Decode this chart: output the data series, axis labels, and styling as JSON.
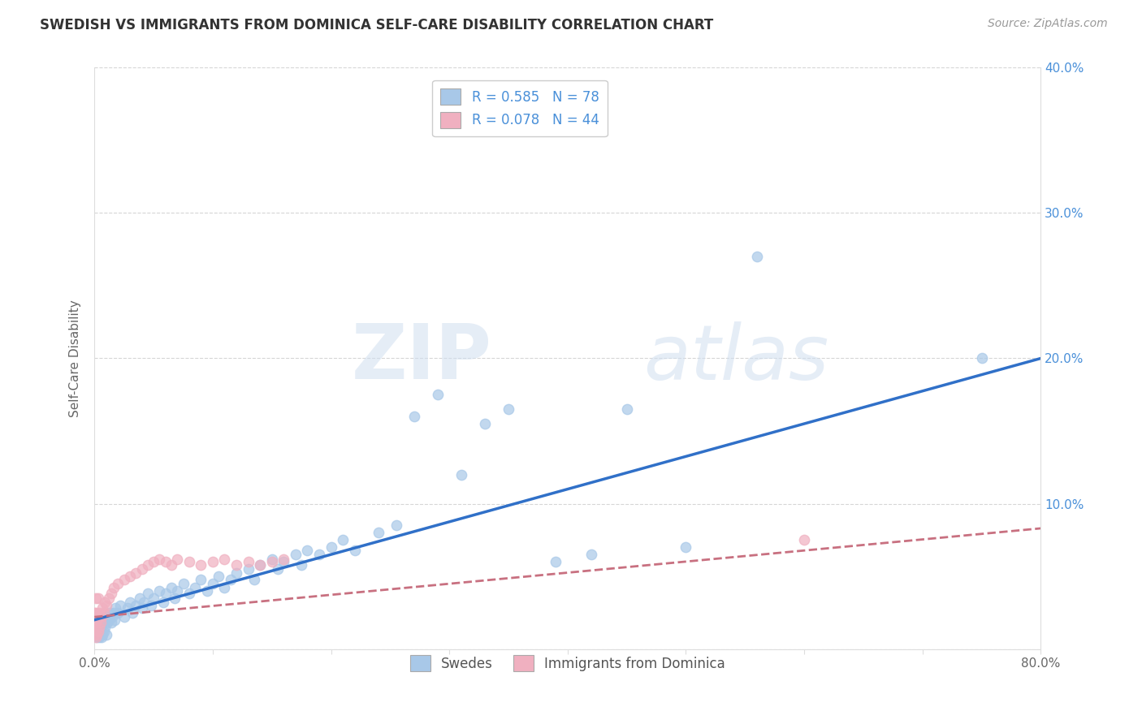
{
  "title": "SWEDISH VS IMMIGRANTS FROM DOMINICA SELF-CARE DISABILITY CORRELATION CHART",
  "source": "Source: ZipAtlas.com",
  "ylabel": "Self-Care Disability",
  "xlim": [
    0.0,
    0.8
  ],
  "ylim": [
    0.0,
    0.4
  ],
  "xticks": [
    0.0,
    0.1,
    0.2,
    0.3,
    0.4,
    0.5,
    0.6,
    0.7,
    0.8
  ],
  "yticks": [
    0.0,
    0.1,
    0.2,
    0.3,
    0.4
  ],
  "xtick_labels_sparse": [
    "0.0%",
    "",
    "",
    "",
    "",
    "",
    "",
    "",
    "80.0%"
  ],
  "ytick_labels": [
    "",
    "10.0%",
    "20.0%",
    "30.0%",
    "40.0%"
  ],
  "swedes_R": 0.585,
  "swedes_N": 78,
  "dominica_R": 0.078,
  "dominica_N": 44,
  "swedes_color": "#a8c8e8",
  "swedes_edge_color": "#a8c8e8",
  "swedes_line_color": "#3070c8",
  "dominica_color": "#f0b0c0",
  "dominica_edge_color": "#f0b0c0",
  "dominica_line_color": "#c87080",
  "legend_label_swedes": "Swedes",
  "legend_label_dominica": "Immigrants from Dominica",
  "watermark_zip": "ZIP",
  "watermark_atlas": "atlas",
  "swedes_line_x0": 0.0,
  "swedes_line_y0": 0.02,
  "swedes_line_x1": 0.8,
  "swedes_line_y1": 0.2,
  "dominica_line_x0": 0.0,
  "dominica_line_y0": 0.022,
  "dominica_line_x1": 0.8,
  "dominica_line_y1": 0.083,
  "swedes_x": [
    0.002,
    0.003,
    0.004,
    0.004,
    0.005,
    0.005,
    0.006,
    0.006,
    0.007,
    0.007,
    0.008,
    0.008,
    0.009,
    0.01,
    0.01,
    0.011,
    0.012,
    0.013,
    0.014,
    0.015,
    0.016,
    0.017,
    0.018,
    0.02,
    0.022,
    0.025,
    0.028,
    0.03,
    0.032,
    0.035,
    0.038,
    0.04,
    0.042,
    0.045,
    0.048,
    0.05,
    0.055,
    0.058,
    0.06,
    0.065,
    0.068,
    0.07,
    0.075,
    0.08,
    0.085,
    0.09,
    0.095,
    0.1,
    0.105,
    0.11,
    0.115,
    0.12,
    0.13,
    0.135,
    0.14,
    0.15,
    0.155,
    0.16,
    0.17,
    0.175,
    0.18,
    0.19,
    0.2,
    0.21,
    0.22,
    0.24,
    0.255,
    0.27,
    0.29,
    0.31,
    0.33,
    0.35,
    0.39,
    0.42,
    0.45,
    0.5,
    0.56,
    0.75
  ],
  "swedes_y": [
    0.008,
    0.01,
    0.008,
    0.012,
    0.01,
    0.015,
    0.008,
    0.012,
    0.01,
    0.018,
    0.012,
    0.02,
    0.015,
    0.01,
    0.022,
    0.018,
    0.02,
    0.025,
    0.018,
    0.022,
    0.025,
    0.02,
    0.028,
    0.025,
    0.03,
    0.022,
    0.028,
    0.032,
    0.025,
    0.03,
    0.035,
    0.028,
    0.032,
    0.038,
    0.03,
    0.035,
    0.04,
    0.032,
    0.038,
    0.042,
    0.035,
    0.04,
    0.045,
    0.038,
    0.042,
    0.048,
    0.04,
    0.045,
    0.05,
    0.042,
    0.048,
    0.052,
    0.055,
    0.048,
    0.058,
    0.062,
    0.055,
    0.06,
    0.065,
    0.058,
    0.068,
    0.065,
    0.07,
    0.075,
    0.068,
    0.08,
    0.085,
    0.16,
    0.175,
    0.12,
    0.155,
    0.165,
    0.06,
    0.065,
    0.165,
    0.07,
    0.27,
    0.2
  ],
  "dominica_x": [
    0.0,
    0.0,
    0.0,
    0.001,
    0.001,
    0.001,
    0.001,
    0.002,
    0.002,
    0.003,
    0.003,
    0.003,
    0.004,
    0.004,
    0.005,
    0.006,
    0.007,
    0.008,
    0.009,
    0.01,
    0.012,
    0.014,
    0.016,
    0.02,
    0.025,
    0.03,
    0.035,
    0.04,
    0.045,
    0.05,
    0.055,
    0.06,
    0.065,
    0.07,
    0.08,
    0.09,
    0.1,
    0.11,
    0.12,
    0.13,
    0.14,
    0.15,
    0.16,
    0.6
  ],
  "dominica_y": [
    0.01,
    0.015,
    0.025,
    0.008,
    0.018,
    0.025,
    0.035,
    0.01,
    0.02,
    0.012,
    0.022,
    0.035,
    0.015,
    0.025,
    0.018,
    0.022,
    0.028,
    0.025,
    0.032,
    0.03,
    0.035,
    0.038,
    0.042,
    0.045,
    0.048,
    0.05,
    0.052,
    0.055,
    0.058,
    0.06,
    0.062,
    0.06,
    0.058,
    0.062,
    0.06,
    0.058,
    0.06,
    0.062,
    0.058,
    0.06,
    0.058,
    0.06,
    0.062,
    0.075
  ]
}
